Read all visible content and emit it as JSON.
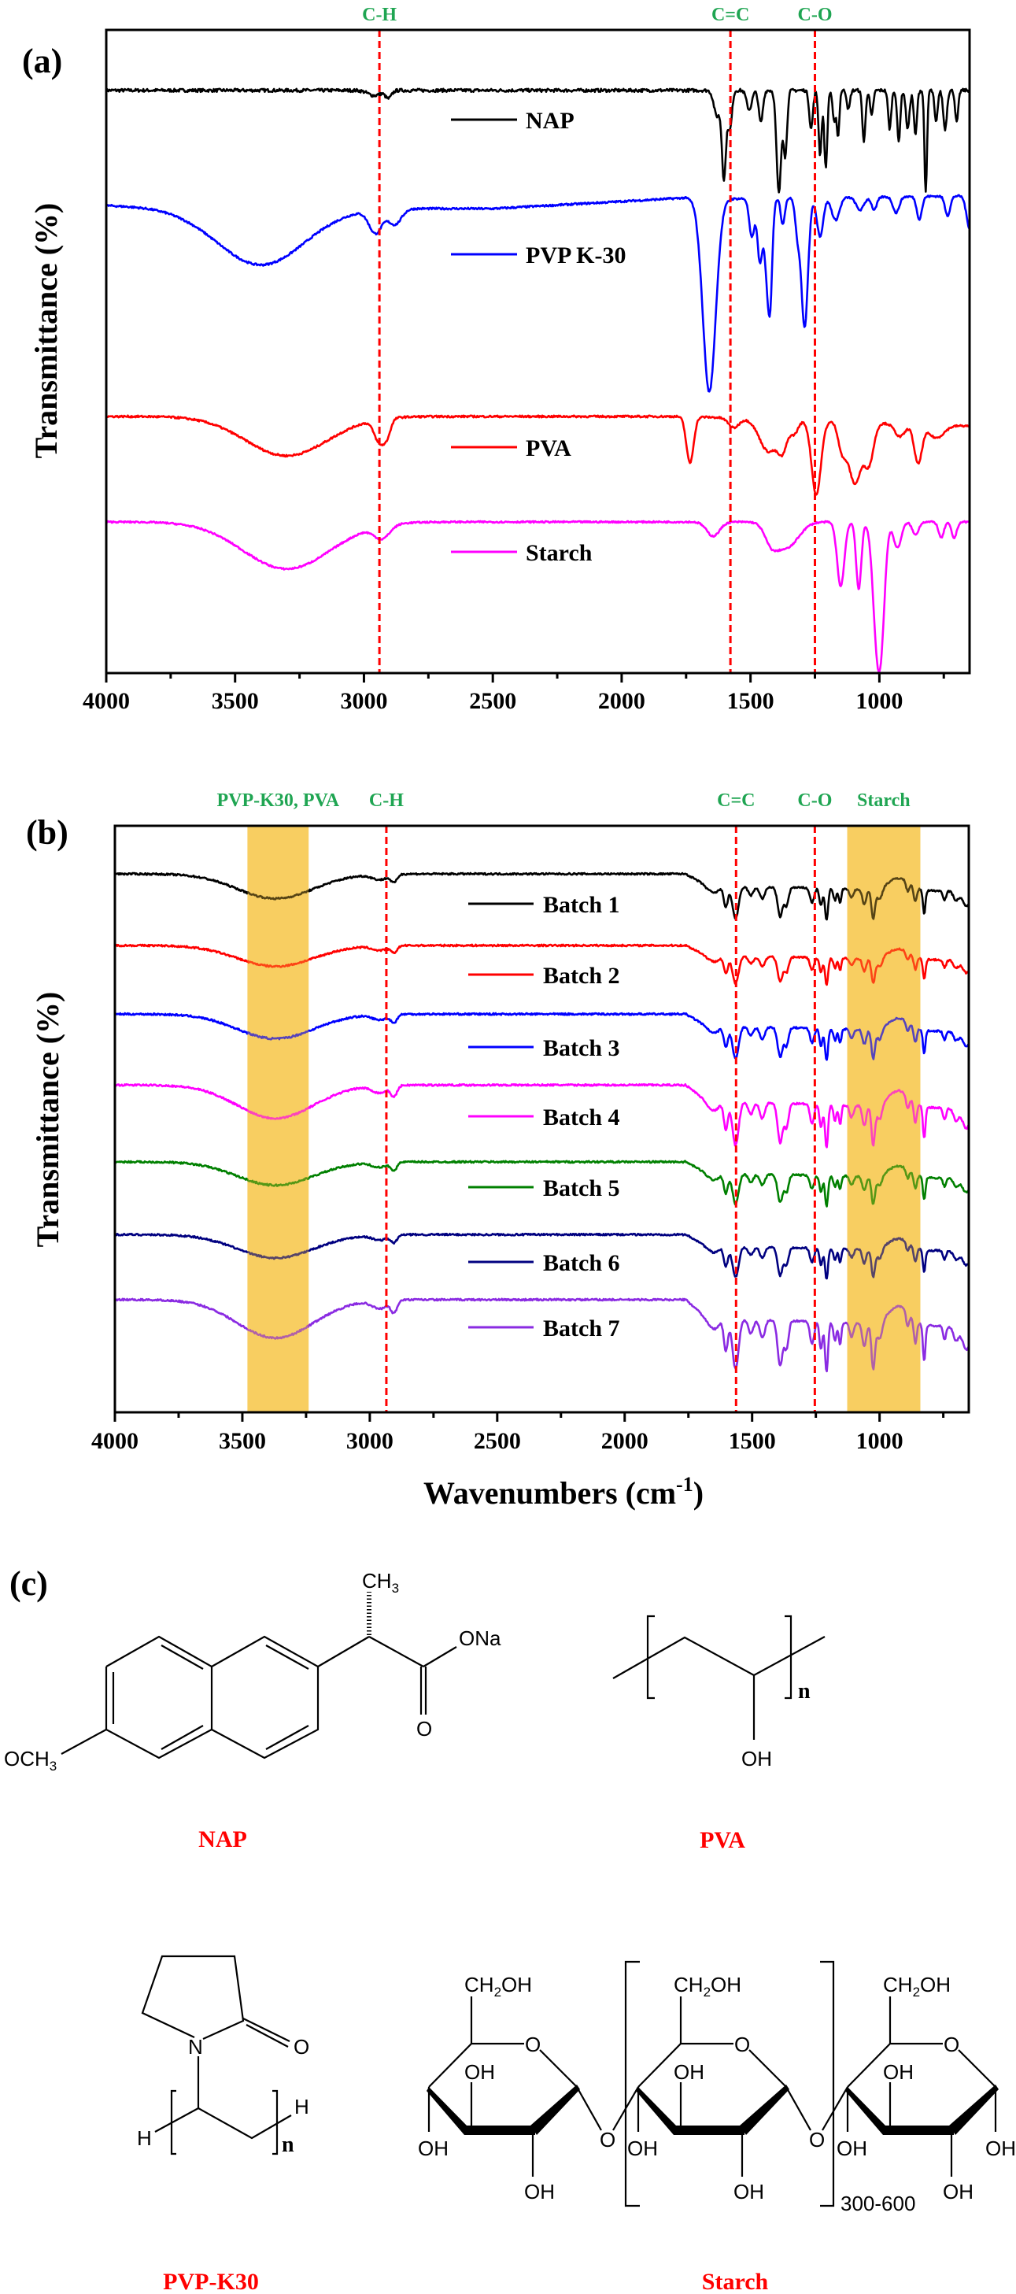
{
  "figure": {
    "panel_labels": [
      "(a)",
      "(b)",
      "(c)"
    ]
  },
  "chart_data": [
    {
      "type": "line",
      "id": "a",
      "title": "",
      "xlabel": "",
      "ylabel": "Transmittance (%)",
      "xlim": [
        4000,
        650
      ],
      "ylim": [
        0,
        100
      ],
      "x_ticks": [
        4000,
        3500,
        3000,
        2500,
        2000,
        1500,
        1000
      ],
      "x_minor_ticks": [
        3750,
        3250,
        2750,
        2250,
        1750,
        1250,
        750
      ],
      "y_ticks_shown": false,
      "grid": false,
      "legend_placement": "inline-center",
      "reference_lines": [
        {
          "label": "C-H",
          "x": 2940,
          "color": "#ff0000",
          "style": "dashed"
        },
        {
          "label": "C=C",
          "x": 1578,
          "color": "#ff0000",
          "style": "dashed"
        },
        {
          "label": "C-O",
          "x": 1250,
          "color": "#ff0000",
          "style": "dashed"
        }
      ],
      "annotation_color": "#1fa552",
      "series": [
        {
          "name": "NAP",
          "color": "#000000",
          "baseline": 90.6,
          "noise": 0.5,
          "bands": [
            [
              2960,
              0.8,
              25
            ],
            [
              2905,
              1.2,
              12
            ],
            [
              1630,
              4,
              12
            ],
            [
              1603,
              13.5,
              8
            ],
            [
              1580,
              6,
              8
            ],
            [
              1505,
              3,
              10
            ],
            [
              1460,
              5,
              8
            ],
            [
              1390,
              16,
              9
            ],
            [
              1365,
              10,
              7
            ],
            [
              1265,
              6,
              7
            ],
            [
              1230,
              10,
              6
            ],
            [
              1208,
              12,
              6
            ],
            [
              1175,
              5,
              6
            ],
            [
              1160,
              7,
              5
            ],
            [
              1120,
              3,
              6
            ],
            [
              1060,
              8,
              6
            ],
            [
              1030,
              4,
              6
            ],
            [
              960,
              6,
              6
            ],
            [
              925,
              8,
              6
            ],
            [
              890,
              6,
              7
            ],
            [
              860,
              7,
              6
            ],
            [
              820,
              16,
              5
            ],
            [
              780,
              5,
              6
            ],
            [
              745,
              6,
              7
            ],
            [
              700,
              5,
              6
            ]
          ]
        },
        {
          "name": "PVP K-30",
          "color": "#0000ff",
          "baseline": 72.7,
          "noise": 0.3,
          "slope": [
            [
              4000,
              0
            ],
            [
              3700,
              -0.4
            ],
            [
              2500,
              -0.5
            ],
            [
              1750,
              1.2
            ],
            [
              1660,
              1
            ],
            [
              650,
              1.5
            ]
          ],
          "bands": [
            [
              3400,
              8.8,
              170
            ],
            [
              2955,
              3.6,
              25
            ],
            [
              2880,
              2.4,
              25
            ],
            [
              1660,
              30,
              25
            ],
            [
              1495,
              6,
              10
            ],
            [
              1463,
              10,
              10
            ],
            [
              1440,
              7,
              8
            ],
            [
              1425,
              17,
              9
            ],
            [
              1375,
              4,
              8
            ],
            [
              1318,
              5,
              9
            ],
            [
              1290,
              20,
              13
            ],
            [
              1230,
              6,
              12
            ],
            [
              1170,
              3.5,
              15
            ],
            [
              1075,
              2,
              15
            ],
            [
              1020,
              2,
              10
            ],
            [
              935,
              2.5,
              12
            ],
            [
              845,
              3.5,
              10
            ],
            [
              735,
              3,
              10
            ],
            [
              650,
              5,
              12
            ]
          ]
        },
        {
          "name": "PVA",
          "color": "#ff0000",
          "baseline": 39.9,
          "noise": 0.3,
          "slope": [
            [
              4000,
              0
            ],
            [
              2500,
              0
            ],
            [
              1750,
              0
            ],
            [
              650,
              -1.5
            ]
          ],
          "bands": [
            [
              3300,
              6.1,
              160
            ],
            [
              2940,
              3.5,
              20
            ],
            [
              2910,
              2.2,
              15
            ],
            [
              1735,
              7.2,
              14
            ],
            [
              1565,
              1.5,
              20
            ],
            [
              1430,
              5,
              35
            ],
            [
              1375,
              4,
              18
            ],
            [
              1330,
              2,
              15
            ],
            [
              1245,
              11.5,
              18
            ],
            [
              1145,
              4,
              15
            ],
            [
              1095,
              9.5,
              25
            ],
            [
              1040,
              6,
              18
            ],
            [
              920,
              2,
              20
            ],
            [
              850,
              6,
              15
            ],
            [
              780,
              2,
              30
            ]
          ]
        },
        {
          "name": "Starch",
          "color": "#ff00ff",
          "baseline": 23.5,
          "noise": 0.25,
          "bands": [
            [
              3300,
              7.3,
              170
            ],
            [
              2930,
              2.0,
              30
            ],
            [
              1645,
              2.2,
              25
            ],
            [
              1420,
              2.5,
              25
            ],
            [
              1360,
              4,
              45
            ],
            [
              1150,
              10,
              14
            ],
            [
              1080,
              10.5,
              10
            ],
            [
              1010,
              17,
              16
            ],
            [
              990,
              12,
              14
            ],
            [
              930,
              4,
              15
            ],
            [
              860,
              2,
              12
            ],
            [
              760,
              2.5,
              10
            ],
            [
              710,
              2.5,
              10
            ]
          ]
        }
      ]
    },
    {
      "type": "line",
      "id": "b",
      "title": "",
      "xlabel": "Wavenumbers (cm-1)",
      "xlabel_main": "Wavenumbers (cm",
      "xlabel_sup": "-1",
      "xlabel_end": ")",
      "ylabel": "Transmittance (%)",
      "xlim": [
        4000,
        650
      ],
      "ylim": [
        0,
        100
      ],
      "x_ticks": [
        4000,
        3500,
        3000,
        2500,
        2000,
        1500,
        1000
      ],
      "x_minor_ticks": [
        3750,
        3250,
        2750,
        2250,
        1750,
        1250,
        750
      ],
      "y_ticks_shown": false,
      "grid": false,
      "legend_placement": "inline-center",
      "reference_lines": [
        {
          "label": "C-H",
          "x": 2935,
          "color": "#ff0000",
          "style": "dashed"
        },
        {
          "label": "C=C",
          "x": 1563,
          "color": "#ff0000",
          "style": "dashed"
        },
        {
          "label": "C-O",
          "x": 1254,
          "color": "#ff0000",
          "style": "dashed"
        }
      ],
      "highlight_bands": [
        {
          "label": "PVP-K30, PVA",
          "x_range": [
            3480,
            3240
          ],
          "color": "#f7c23c",
          "opacity": 0.75
        },
        {
          "label": "Starch",
          "x_range": [
            1127,
            840
          ],
          "color": "#f7c23c",
          "opacity": 0.75
        }
      ],
      "annotation_color": "#1fa552",
      "series": [
        {
          "name": "Batch 1",
          "color": "#000000",
          "baseline": 91.8,
          "scale": 1.0
        },
        {
          "name": "Batch 2",
          "color": "#ff0000",
          "baseline": 79.6,
          "scale": 0.85
        },
        {
          "name": "Batch 3",
          "color": "#0000ff",
          "baseline": 67.9,
          "scale": 1.0
        },
        {
          "name": "Batch 4",
          "color": "#ff00ff",
          "baseline": 55.8,
          "scale": 1.35
        },
        {
          "name": "Batch 5",
          "color": "#008000",
          "baseline": 42.7,
          "scale": 0.95
        },
        {
          "name": "Batch 6",
          "color": "#000080",
          "baseline": 30.3,
          "scale": 0.95
        },
        {
          "name": "Batch 7",
          "color": "#8a2be2",
          "baseline": 19.2,
          "scale": 1.55
        }
      ],
      "common_bands": [
        [
          3370,
          4.2,
          150
        ],
        [
          2960,
          0.9,
          30
        ],
        [
          2905,
          1.3,
          12
        ],
        [
          1650,
          1.2,
          20
        ],
        [
          1603,
          3.5,
          8
        ],
        [
          1565,
          5.5,
          12
        ],
        [
          1505,
          1.5,
          10
        ],
        [
          1460,
          2,
          10
        ],
        [
          1390,
          5,
          10
        ],
        [
          1365,
          3,
          8
        ],
        [
          1265,
          2.5,
          8
        ],
        [
          1230,
          3,
          6
        ],
        [
          1208,
          5.5,
          6
        ],
        [
          1175,
          2,
          6
        ],
        [
          1155,
          2.5,
          5
        ],
        [
          1110,
          1.5,
          8
        ],
        [
          1060,
          2.5,
          8
        ],
        [
          1025,
          5,
          7
        ],
        [
          1000,
          2,
          10
        ],
        [
          925,
          -2,
          40
        ],
        [
          890,
          1.5,
          6
        ],
        [
          860,
          2.5,
          6
        ],
        [
          825,
          4,
          5
        ],
        [
          745,
          1.5,
          6
        ],
        [
          700,
          1.5,
          10
        ],
        [
          660,
          2.5,
          15
        ]
      ],
      "common_slope": [
        [
          4000,
          0
        ],
        [
          1760,
          0
        ],
        [
          1680,
          -2.0
        ],
        [
          650,
          -3.0
        ]
      ]
    }
  ],
  "annotations_a": {
    "labels": [
      {
        "text": "C-H",
        "x": 2940
      },
      {
        "text": "C=C",
        "x": 1578
      },
      {
        "text": "C-O",
        "x": 1250
      }
    ]
  },
  "annotations_b": {
    "labels": [
      {
        "text": "PVP-K30, PVA",
        "x": 3360
      },
      {
        "text": "C-H",
        "x": 2935
      },
      {
        "text": "C=C",
        "x": 1563
      },
      {
        "text": "C-O",
        "x": 1254
      },
      {
        "text": "Starch",
        "x": 984
      }
    ]
  },
  "structures": {
    "nap": {
      "name": "NAP",
      "labels": {
        "ch3": "CH",
        "ch3_sub": "3",
        "ona": "ONa",
        "o": "O",
        "och3": "OCH",
        "och3_sub": "3"
      }
    },
    "pva": {
      "name": "PVA",
      "labels": {
        "oh": "OH",
        "n": "n"
      }
    },
    "pvp": {
      "name": "PVP-K30",
      "labels": {
        "o": "O",
        "n_atom": "N",
        "h_left": "H",
        "h_right": "H",
        "n": "n"
      }
    },
    "starch": {
      "name": "Starch",
      "labels": {
        "ch2oh": "CH",
        "ch2oh_sub": "2",
        "ch2oh_end": "OH",
        "oh": "OH",
        "o": "O",
        "repeat": "300-600"
      }
    }
  }
}
